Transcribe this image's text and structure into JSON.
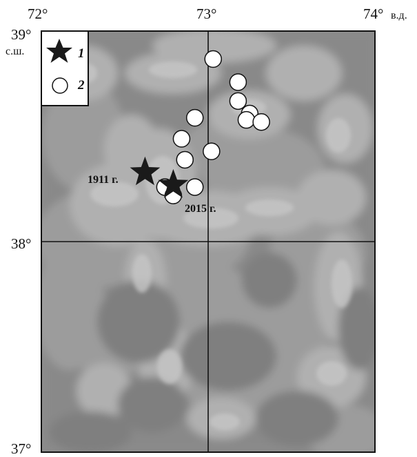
{
  "map": {
    "lon_ticks": [
      "72°",
      "73°",
      "74°"
    ],
    "lon_suffix": "в.д.",
    "lat_ticks": [
      "39°",
      "38°",
      "37°"
    ],
    "lat_suffix": "с.ш.",
    "extent": {
      "lon": [
        72,
        74
      ],
      "lat": [
        37,
        39
      ]
    },
    "gridlines": {
      "lon": [
        73
      ],
      "lat": [
        38
      ]
    },
    "background": "grayscale shaded relief"
  },
  "legend": {
    "items": [
      {
        "symbol": "star-icon",
        "label": "1"
      },
      {
        "symbol": "circle-icon",
        "label": "2"
      }
    ]
  },
  "stars": [
    {
      "lon": 72.62,
      "lat": 38.33,
      "label": "1911 г."
    },
    {
      "lon": 72.79,
      "lat": 38.27,
      "label": "2015 г."
    }
  ],
  "circles": [
    {
      "lon": 73.03,
      "lat": 38.87
    },
    {
      "lon": 73.18,
      "lat": 38.76
    },
    {
      "lon": 73.18,
      "lat": 38.67
    },
    {
      "lon": 73.25,
      "lat": 38.61
    },
    {
      "lon": 73.23,
      "lat": 38.58
    },
    {
      "lon": 73.32,
      "lat": 38.57
    },
    {
      "lon": 72.92,
      "lat": 38.59
    },
    {
      "lon": 72.84,
      "lat": 38.49
    },
    {
      "lon": 73.02,
      "lat": 38.43
    },
    {
      "lon": 72.86,
      "lat": 38.39
    },
    {
      "lon": 72.92,
      "lat": 38.26
    },
    {
      "lon": 72.74,
      "lat": 38.26
    },
    {
      "lon": 72.79,
      "lat": 38.22
    }
  ],
  "colors": {
    "frame": "#111111",
    "relief_dark": "#7f7f7f",
    "relief_mid": "#9c9c9c",
    "relief_light": "#c6c6c6",
    "star": "#1a1a1a",
    "circle_fill": "#ffffff"
  }
}
